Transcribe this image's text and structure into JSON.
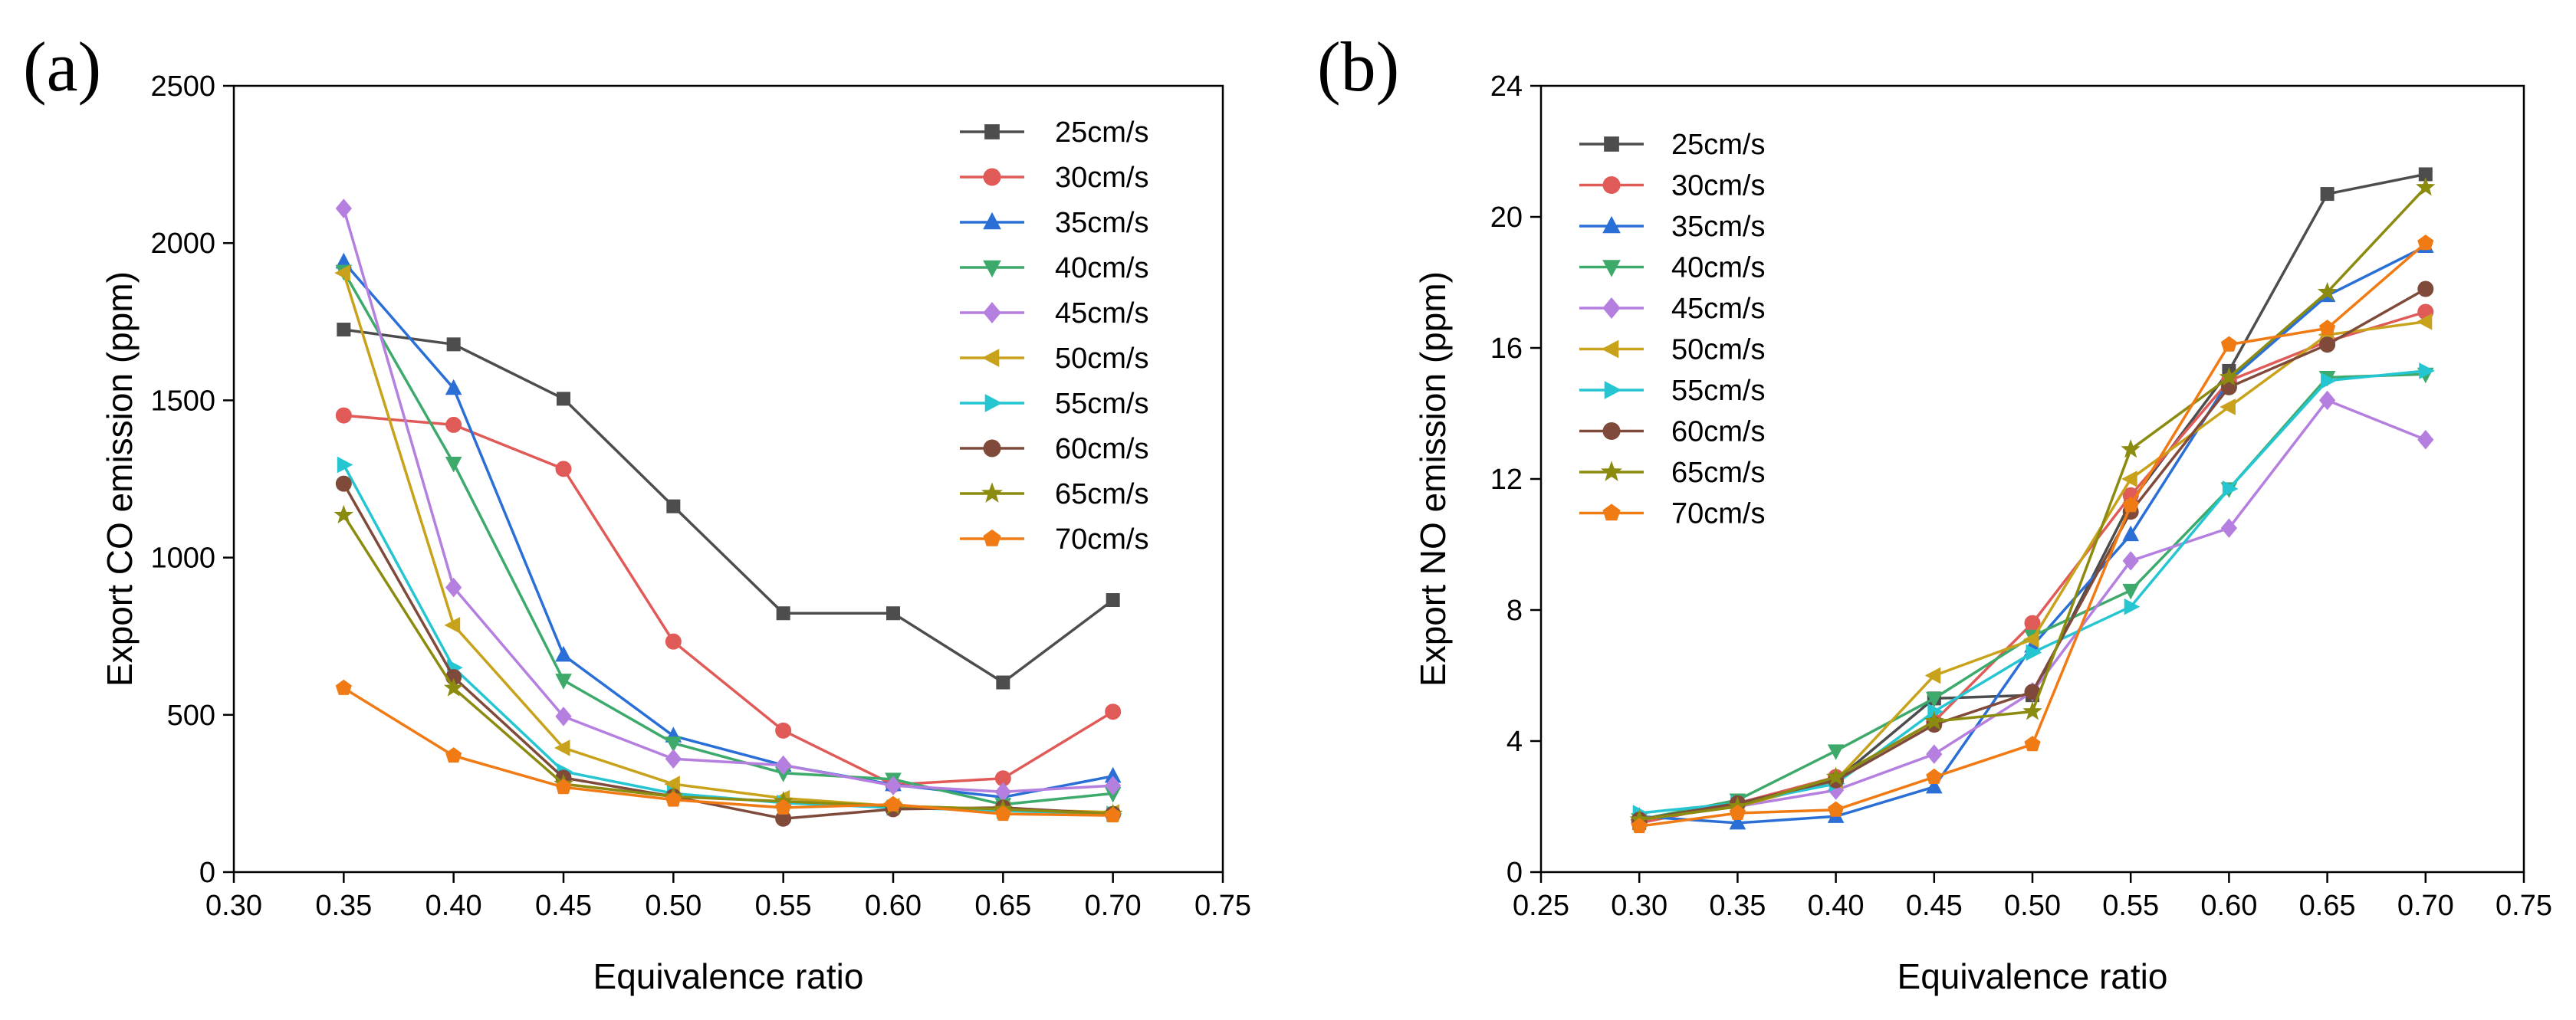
{
  "figure": {
    "panel_labels": [
      "(a)",
      "(b)"
    ]
  },
  "chart_data": [
    {
      "type": "line",
      "panel": "(a)",
      "xlabel": "Equivalence ratio",
      "ylabel": "Export CO emission (ppm)",
      "xlim": [
        0.3,
        0.75
      ],
      "ylim": [
        0,
        2500
      ],
      "xticks": [
        "0.30",
        "0.35",
        "0.40",
        "0.45",
        "0.50",
        "0.55",
        "0.60",
        "0.65",
        "0.70",
        "0.75"
      ],
      "yticks": [
        "0",
        "500",
        "1000",
        "1500",
        "2000",
        "2500"
      ],
      "x": [
        0.35,
        0.4,
        0.45,
        0.5,
        0.55,
        0.6,
        0.65,
        0.7
      ],
      "legend_position": "top-right",
      "series": [
        {
          "name": "25cm/s",
          "color": "#4d4d4d",
          "marker": "square",
          "values": [
            1725,
            1678,
            1505,
            1163,
            823,
            823,
            603,
            865
          ]
        },
        {
          "name": "30cm/s",
          "color": "#e05a58",
          "marker": "circle",
          "values": [
            1452,
            1422,
            1282,
            733,
            450,
            278,
            298,
            510
          ]
        },
        {
          "name": "35cm/s",
          "color": "#2a6fd6",
          "marker": "triangle-up",
          "values": [
            1940,
            1538,
            690,
            433,
            340,
            278,
            238,
            305
          ]
        },
        {
          "name": "40cm/s",
          "color": "#3daa6c",
          "marker": "triangle-down",
          "values": [
            1910,
            1300,
            610,
            410,
            315,
            295,
            215,
            250
          ]
        },
        {
          "name": "45cm/s",
          "color": "#b57fe0",
          "marker": "diamond",
          "values": [
            2110,
            905,
            495,
            360,
            340,
            275,
            255,
            275
          ]
        },
        {
          "name": "50cm/s",
          "color": "#c8a21a",
          "marker": "triangle-left",
          "values": [
            1905,
            785,
            395,
            280,
            235,
            210,
            200,
            190
          ]
        },
        {
          "name": "55cm/s",
          "color": "#25c6d2",
          "marker": "triangle-right",
          "values": [
            1295,
            650,
            320,
            250,
            220,
            205,
            195,
            185
          ]
        },
        {
          "name": "60cm/s",
          "color": "#7f4a3a",
          "marker": "circle",
          "values": [
            1235,
            620,
            300,
            240,
            170,
            200,
            205,
            185
          ]
        },
        {
          "name": "65cm/s",
          "color": "#8b8b10",
          "marker": "star",
          "values": [
            1135,
            585,
            280,
            240,
            225,
            210,
            200,
            185
          ]
        },
        {
          "name": "70cm/s",
          "color": "#f07a14",
          "marker": "pentagon",
          "values": [
            585,
            370,
            270,
            230,
            205,
            215,
            185,
            180
          ]
        }
      ]
    },
    {
      "type": "line",
      "panel": "(b)",
      "xlabel": "Equivalence ratio",
      "ylabel": "Export NO emission (ppm)",
      "xlim": [
        0.25,
        0.75
      ],
      "ylim": [
        0,
        24
      ],
      "xticks": [
        "0.25",
        "0.30",
        "0.35",
        "0.40",
        "0.45",
        "0.50",
        "0.55",
        "0.60",
        "0.65",
        "0.70",
        "0.75"
      ],
      "yticks": [
        "0",
        "4",
        "8",
        "12",
        "16",
        "20",
        "24"
      ],
      "x": [
        0.3,
        0.35,
        0.4,
        0.45,
        0.5,
        0.55,
        0.6,
        0.65,
        0.7
      ],
      "legend_position": "top-left",
      "series": [
        {
          "name": "25cm/s",
          "color": "#4d4d4d",
          "marker": "square",
          "values": [
            1.5,
            2.1,
            2.8,
            5.3,
            5.4,
            11.3,
            15.3,
            20.7,
            21.3
          ]
        },
        {
          "name": "30cm/s",
          "color": "#e05a58",
          "marker": "circle",
          "values": [
            1.5,
            2.1,
            2.9,
            4.6,
            7.6,
            11.5,
            15.0,
            16.2,
            17.1
          ]
        },
        {
          "name": "35cm/s",
          "color": "#2a6fd6",
          "marker": "triangle-up",
          "values": [
            1.7,
            1.5,
            1.7,
            2.6,
            6.9,
            10.3,
            15.0,
            17.6,
            19.1
          ]
        },
        {
          "name": "40cm/s",
          "color": "#3daa6c",
          "marker": "triangle-down",
          "values": [
            1.6,
            2.2,
            3.7,
            5.3,
            7.2,
            8.6,
            11.7,
            15.1,
            15.2
          ]
        },
        {
          "name": "45cm/s",
          "color": "#b57fe0",
          "marker": "diamond",
          "values": [
            1.6,
            2.0,
            2.5,
            3.6,
            5.5,
            9.5,
            10.5,
            14.4,
            13.2
          ]
        },
        {
          "name": "50cm/s",
          "color": "#c8a21a",
          "marker": "triangle-left",
          "values": [
            1.6,
            2.0,
            2.8,
            6.0,
            7.1,
            12.0,
            14.2,
            16.4,
            16.8
          ]
        },
        {
          "name": "55cm/s",
          "color": "#25c6d2",
          "marker": "triangle-right",
          "values": [
            1.8,
            2.1,
            2.7,
            4.9,
            6.7,
            8.1,
            11.7,
            15.0,
            15.3
          ]
        },
        {
          "name": "60cm/s",
          "color": "#7f4a3a",
          "marker": "circle",
          "values": [
            1.6,
            2.1,
            2.8,
            4.5,
            5.5,
            11.0,
            14.8,
            16.1,
            17.8
          ]
        },
        {
          "name": "65cm/s",
          "color": "#8b8b10",
          "marker": "star",
          "values": [
            1.6,
            2.0,
            2.9,
            4.6,
            4.9,
            12.9,
            15.1,
            17.7,
            20.9
          ]
        },
        {
          "name": "70cm/s",
          "color": "#f07a14",
          "marker": "pentagon",
          "values": [
            1.4,
            1.8,
            1.9,
            2.9,
            3.9,
            11.2,
            16.1,
            16.6,
            19.2
          ]
        }
      ]
    }
  ]
}
